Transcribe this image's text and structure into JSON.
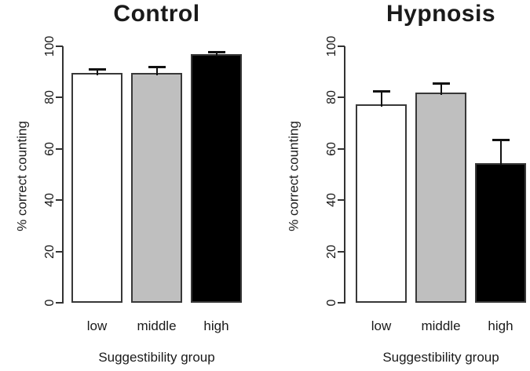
{
  "figure_description": "Two-panel bar chart comparing % correct counting across suggestibility groups",
  "colors": {
    "background": "#ffffff",
    "bar_border": "#383838",
    "axis": "#333333",
    "error_bar": "#111111",
    "text": "#1a1a1a"
  },
  "chart_data": [
    {
      "type": "bar",
      "title": "Control",
      "xlabel": "Suggestibility group",
      "ylabel": "% correct counting",
      "categories": [
        "low",
        "middle",
        "high"
      ],
      "values": [
        89.5,
        89.5,
        97
      ],
      "error_upper": [
        91,
        92,
        98
      ],
      "bar_colors": [
        "#ffffff",
        "#bfbfbf",
        "#000000"
      ],
      "ylim": [
        0,
        100
      ],
      "yticks": [
        0,
        20,
        40,
        60,
        80,
        100
      ],
      "grid": "off",
      "legend": "none"
    },
    {
      "type": "bar",
      "title": "Hypnosis",
      "xlabel": "Suggestibility group",
      "ylabel": "% correct counting",
      "categories": [
        "low",
        "middle",
        "high"
      ],
      "values": [
        77.5,
        82,
        54.5
      ],
      "error_upper": [
        82.5,
        85.5,
        63.5
      ],
      "bar_colors": [
        "#ffffff",
        "#bfbfbf",
        "#000000"
      ],
      "ylim": [
        0,
        100
      ],
      "yticks": [
        0,
        20,
        40,
        60,
        80,
        100
      ],
      "grid": "off",
      "legend": "none"
    }
  ]
}
